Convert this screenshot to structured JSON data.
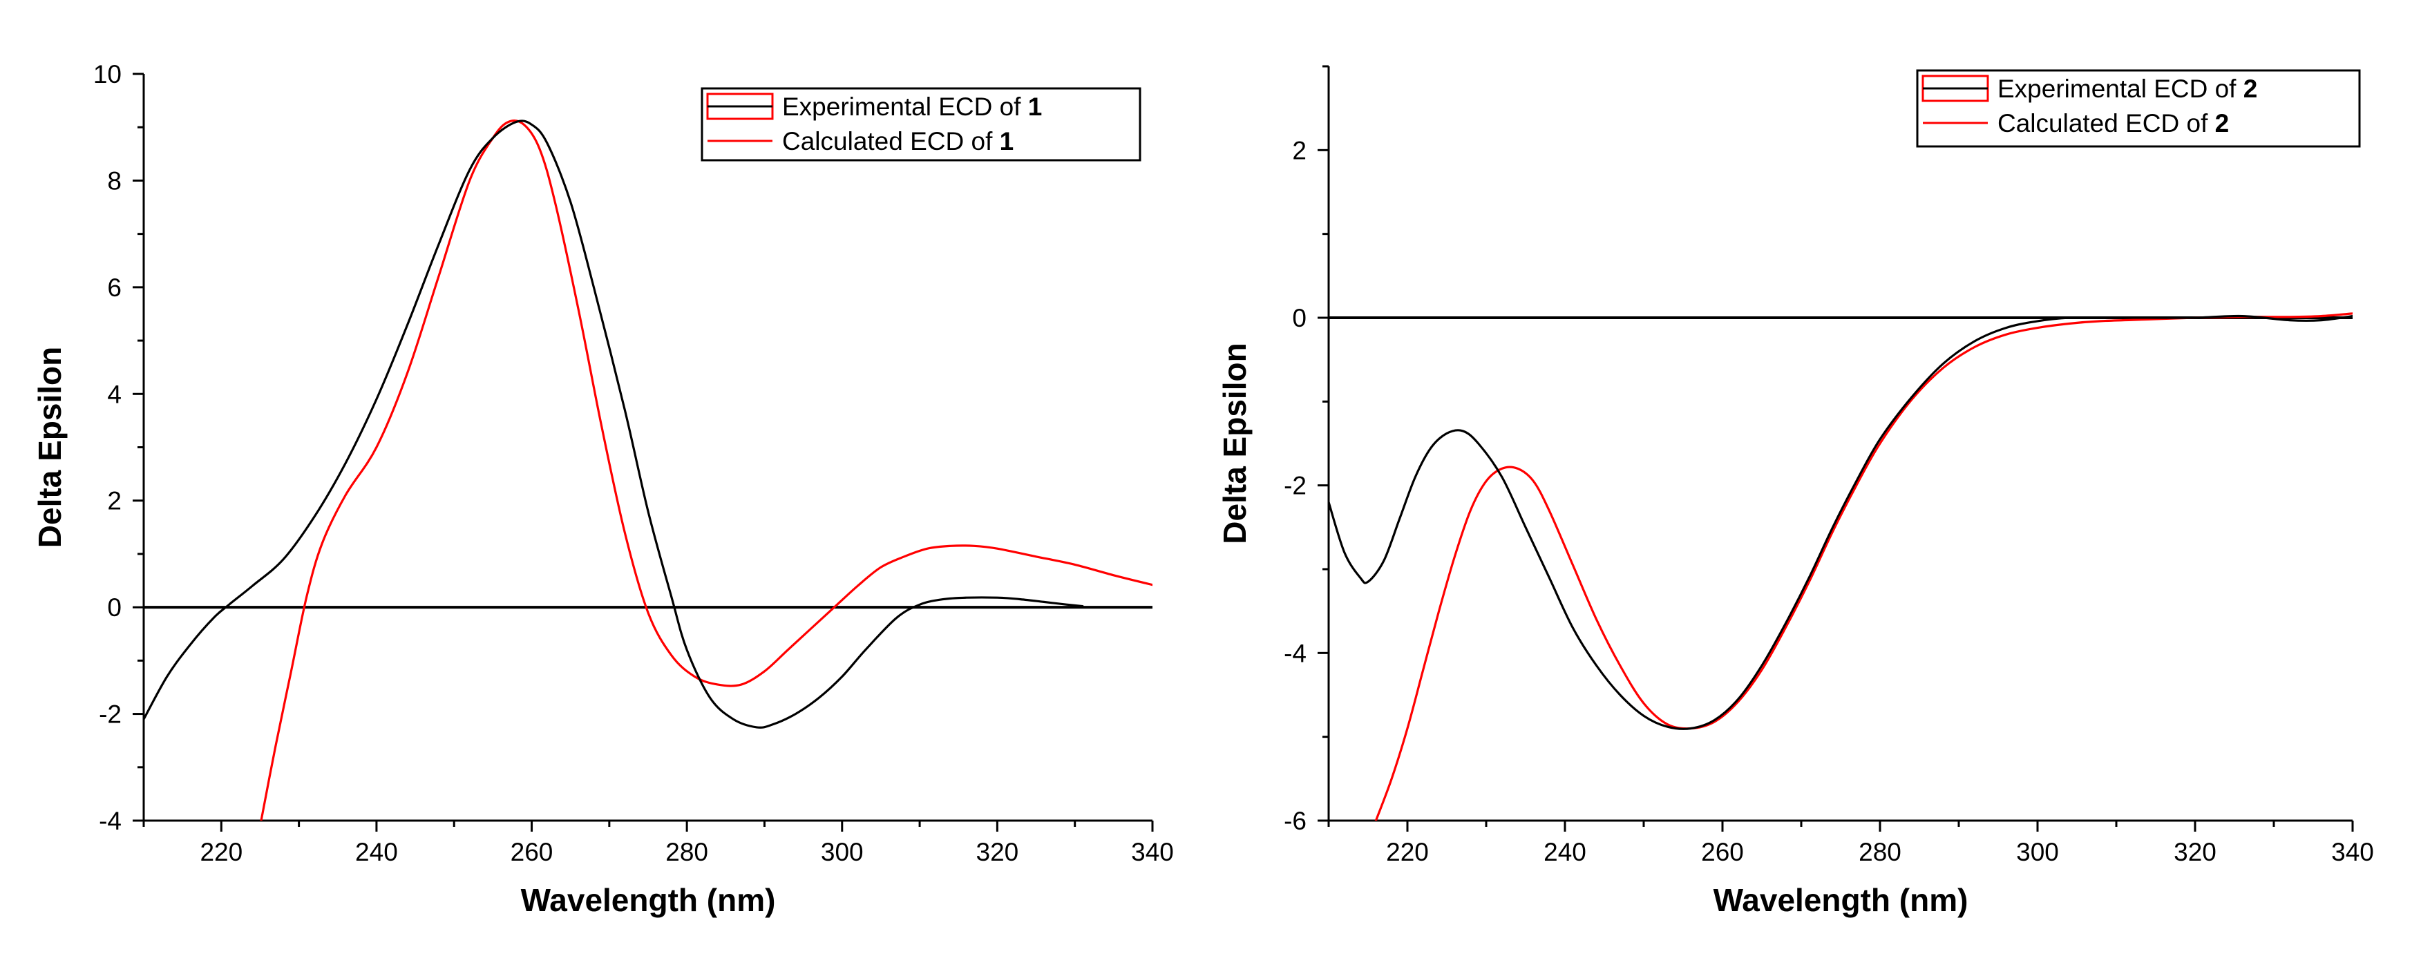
{
  "chart_data": [
    {
      "type": "line",
      "xlabel": "Wavelength (nm)",
      "ylabel": "Delta Epsilon",
      "xlim": [
        210,
        340
      ],
      "ylim": [
        -4,
        10
      ],
      "xticks": [
        220,
        240,
        260,
        280,
        300,
        320,
        340
      ],
      "yticks": [
        -4,
        -2,
        0,
        2,
        4,
        6,
        8,
        10
      ],
      "grid": false,
      "legend_position": "top-right",
      "zero_line": true,
      "compound": "1",
      "series": [
        {
          "name": "Experimental ECD of ",
          "color": "#000000",
          "x": [
            210,
            213,
            216,
            219,
            221,
            224,
            228,
            232,
            236,
            240,
            244,
            248,
            252,
            255,
            258,
            260,
            262,
            265,
            268,
            272,
            275,
            278,
            280,
            283,
            286,
            289,
            291,
            294,
            297,
            300,
            303,
            307,
            310,
            313,
            316,
            320,
            323,
            326,
            329,
            331
          ],
          "y": [
            -2.1,
            -1.3,
            -0.7,
            -0.2,
            0.05,
            0.4,
            0.9,
            1.7,
            2.7,
            3.9,
            5.3,
            6.8,
            8.2,
            8.8,
            9.1,
            9.05,
            8.7,
            7.6,
            6.0,
            3.7,
            1.8,
            0.2,
            -0.8,
            -1.7,
            -2.1,
            -2.25,
            -2.2,
            -2.0,
            -1.7,
            -1.3,
            -0.8,
            -0.2,
            0.05,
            0.15,
            0.18,
            0.18,
            0.15,
            0.1,
            0.05,
            0.02
          ]
        },
        {
          "name": "Calculated ECD of ",
          "color": "#ff0000",
          "x": [
            225,
            227,
            229,
            231,
            233,
            236,
            240,
            244,
            248,
            252,
            255,
            257,
            259,
            261,
            263,
            266,
            269,
            272,
            275,
            278,
            281,
            284,
            287,
            290,
            293,
            296,
            299,
            302,
            305,
            308,
            311,
            314,
            317,
            320,
            325,
            330,
            335,
            340
          ],
          "y": [
            -4.1,
            -2.6,
            -1.2,
            0.2,
            1.2,
            2.1,
            3.0,
            4.4,
            6.2,
            8.0,
            8.8,
            9.1,
            9.05,
            8.6,
            7.6,
            5.6,
            3.4,
            1.4,
            -0.1,
            -0.9,
            -1.3,
            -1.45,
            -1.45,
            -1.2,
            -0.8,
            -0.4,
            0.0,
            0.4,
            0.75,
            0.95,
            1.1,
            1.15,
            1.15,
            1.1,
            0.95,
            0.8,
            0.6,
            0.42
          ]
        }
      ]
    },
    {
      "type": "line",
      "xlabel": "Wavelength (nm)",
      "ylabel": "Delta Epsilon",
      "xlim": [
        210,
        340
      ],
      "ylim": [
        -6,
        3
      ],
      "xticks": [
        220,
        240,
        260,
        280,
        300,
        320,
        340
      ],
      "yticks": [
        -6,
        -4,
        -2,
        0,
        2
      ],
      "grid": false,
      "legend_position": "top-right",
      "zero_line": true,
      "compound": "2",
      "series": [
        {
          "name": "Experimental ECD of ",
          "color": "#000000",
          "x": [
            210,
            212,
            214,
            215,
            217,
            219,
            221,
            223,
            225,
            227,
            229,
            232,
            235,
            238,
            241,
            244,
            247,
            250,
            253,
            256,
            259,
            262,
            265,
            268,
            271,
            274,
            277,
            280,
            284,
            288,
            292,
            296,
            300,
            304,
            308,
            314,
            320,
            326,
            332,
            336,
            340
          ],
          "y": [
            -2.2,
            -2.8,
            -3.1,
            -3.15,
            -2.9,
            -2.4,
            -1.9,
            -1.55,
            -1.38,
            -1.35,
            -1.5,
            -1.9,
            -2.5,
            -3.1,
            -3.7,
            -4.15,
            -4.5,
            -4.75,
            -4.88,
            -4.9,
            -4.8,
            -4.55,
            -4.15,
            -3.65,
            -3.1,
            -2.5,
            -1.95,
            -1.45,
            -0.95,
            -0.55,
            -0.28,
            -0.12,
            -0.04,
            0.0,
            0.0,
            0.0,
            0.0,
            0.02,
            -0.03,
            -0.03,
            0.02
          ]
        },
        {
          "name": "Calculated ECD of ",
          "color": "#ff0000",
          "x": [
            216,
            218,
            220,
            222,
            224,
            226,
            228,
            230,
            232,
            234,
            236,
            238,
            241,
            244,
            247,
            250,
            253,
            256,
            259,
            262,
            265,
            268,
            271,
            274,
            277,
            280,
            284,
            288,
            292,
            296,
            300,
            304,
            308,
            314,
            320,
            326,
            332,
            336,
            340
          ],
          "y": [
            -6.0,
            -5.5,
            -4.9,
            -4.2,
            -3.5,
            -2.85,
            -2.3,
            -1.95,
            -1.8,
            -1.8,
            -1.95,
            -2.3,
            -2.95,
            -3.6,
            -4.15,
            -4.6,
            -4.85,
            -4.9,
            -4.82,
            -4.58,
            -4.2,
            -3.7,
            -3.15,
            -2.55,
            -2.0,
            -1.5,
            -0.98,
            -0.6,
            -0.35,
            -0.2,
            -0.12,
            -0.07,
            -0.04,
            -0.02,
            0.0,
            0.01,
            0.01,
            0.02,
            0.05
          ]
        }
      ]
    }
  ]
}
